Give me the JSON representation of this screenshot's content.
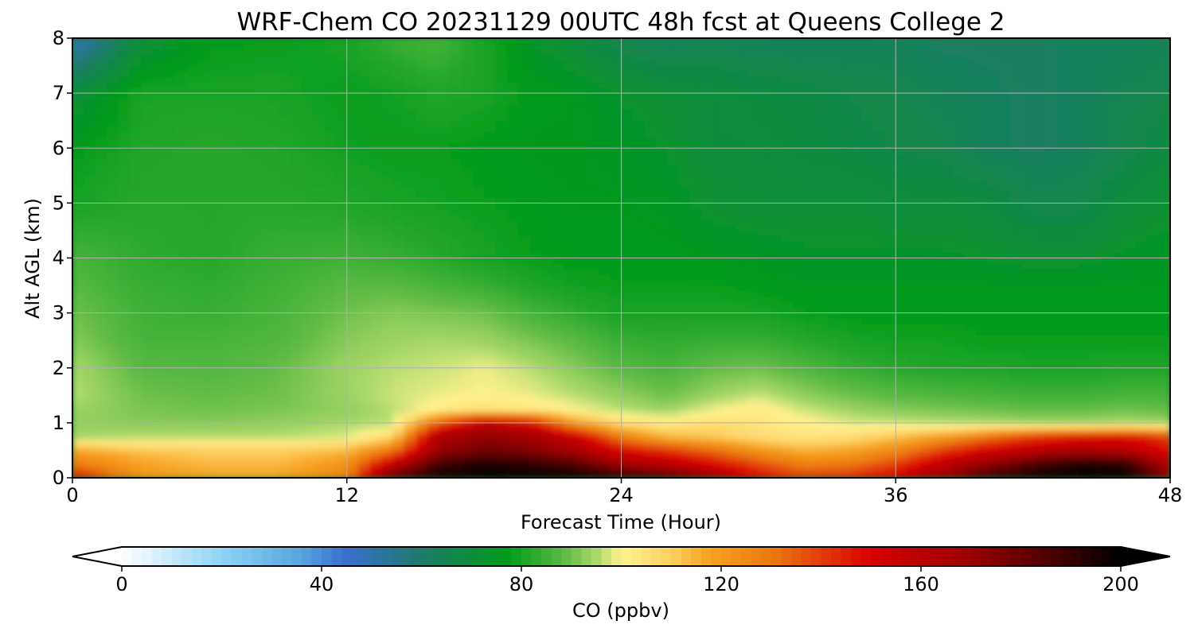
{
  "chart_data": {
    "type": "heatmap",
    "title": "WRF-Chem CO  20231129 00UTC 48h fcst at Queens College 2",
    "xlabel": "Forecast Time (Hour)",
    "ylabel": "Alt AGL (km)",
    "x_ticks": [
      "0",
      "12",
      "24",
      "36",
      "48"
    ],
    "y_ticks": [
      "0",
      "1",
      "2",
      "3",
      "4",
      "5",
      "6",
      "7",
      "8"
    ],
    "xlim": [
      0,
      48
    ],
    "ylim": [
      0,
      8
    ],
    "grid": true,
    "colorbar": {
      "label": "CO  (ppbv)",
      "ticks": [
        "0",
        "40",
        "80",
        "120",
        "160",
        "200"
      ],
      "range": [
        0,
        200
      ],
      "extend": "both",
      "orientation": "horizontal",
      "colors": {
        "0": "#ffffff",
        "20": "#8fd3f5",
        "35": "#5aa8e0",
        "45": "#3a6fcc",
        "60": "#1e7a6a",
        "77": "#009b1a",
        "88": "#58b842",
        "95": "#a9d86a",
        "100": "#fff290",
        "110": "#fdd060",
        "118": "#f6a020",
        "130": "#ec7a10",
        "150": "#d80000",
        "170": "#9a0000",
        "186": "#4a0000",
        "200": "#000000"
      }
    },
    "time_hours": [
      0,
      3,
      6,
      9,
      12,
      14,
      16,
      18,
      20,
      22,
      24,
      26,
      28,
      30,
      32,
      34,
      36,
      38,
      40,
      42,
      44,
      46,
      48
    ],
    "heights_km": [
      0,
      0.25,
      0.5,
      0.75,
      1,
      1.25,
      1.5,
      2,
      2.5,
      3,
      3.5,
      4,
      5,
      6,
      7,
      8
    ],
    "co_ppbv": [
      [
        150,
        122,
        118,
        118,
        128,
        185,
        198,
        200,
        200,
        200,
        195,
        188,
        170,
        150,
        142,
        145,
        152,
        172,
        190,
        198,
        200,
        200,
        175
      ],
      [
        130,
        118,
        114,
        114,
        122,
        158,
        188,
        195,
        192,
        185,
        168,
        160,
        150,
        138,
        128,
        130,
        140,
        158,
        172,
        185,
        195,
        192,
        162
      ],
      [
        118,
        112,
        110,
        110,
        114,
        130,
        170,
        178,
        175,
        165,
        150,
        142,
        132,
        122,
        115,
        118,
        125,
        140,
        152,
        160,
        165,
        162,
        148
      ],
      [
        95,
        96,
        96,
        96,
        98,
        108,
        165,
        172,
        168,
        155,
        128,
        115,
        112,
        106,
        104,
        106,
        112,
        120,
        130,
        140,
        146,
        148,
        138
      ],
      [
        93,
        92,
        92,
        93,
        95,
        96,
        135,
        160,
        150,
        120,
        106,
        102,
        106,
        104,
        101,
        98,
        97,
        96,
        95,
        94,
        94,
        95,
        94
      ],
      [
        94,
        91,
        90,
        91,
        93,
        96,
        102,
        106,
        104,
        100,
        96,
        94,
        99,
        102,
        97,
        94,
        92,
        91,
        90,
        89,
        89,
        90,
        89
      ],
      [
        96,
        90,
        89,
        90,
        94,
        97,
        99,
        100,
        99,
        96,
        93,
        90,
        94,
        97,
        93,
        90,
        88,
        87,
        86,
        85,
        85,
        86,
        86
      ],
      [
        95,
        88,
        87,
        89,
        94,
        96,
        97,
        99,
        96,
        92,
        88,
        86,
        89,
        90,
        87,
        84,
        82,
        81,
        81,
        80,
        80,
        81,
        81
      ],
      [
        92,
        86,
        86,
        87,
        92,
        94,
        95,
        94,
        91,
        88,
        84,
        83,
        84,
        84,
        82,
        80,
        79,
        79,
        78,
        78,
        78,
        78,
        78
      ],
      [
        90,
        85,
        84,
        86,
        90,
        92,
        91,
        90,
        86,
        83,
        80,
        80,
        80,
        80,
        78,
        77,
        77,
        77,
        77,
        77,
        77,
        77,
        77
      ],
      [
        88,
        84,
        83,
        85,
        88,
        88,
        86,
        84,
        81,
        79,
        78,
        78,
        78,
        77,
        76,
        76,
        76,
        76,
        76,
        76,
        76,
        76,
        76
      ],
      [
        86,
        83,
        82,
        84,
        85,
        84,
        82,
        80,
        78,
        77,
        77,
        77,
        76,
        75,
        74,
        74,
        74,
        74,
        73,
        72,
        72,
        74,
        75
      ],
      [
        80,
        82,
        82,
        82,
        81,
        80,
        79,
        78,
        77,
        76,
        76,
        75,
        72,
        71,
        71,
        71,
        70,
        70,
        69,
        66,
        66,
        70,
        72
      ],
      [
        77,
        81,
        82,
        81,
        79,
        78,
        78,
        77,
        76,
        76,
        75,
        73,
        70,
        70,
        69,
        68,
        67,
        66,
        63,
        62,
        63,
        66,
        69
      ],
      [
        70,
        80,
        80,
        80,
        78,
        79,
        81,
        80,
        77,
        76,
        73,
        71,
        70,
        69,
        68,
        67,
        66,
        64,
        63,
        62,
        63,
        65,
        66
      ],
      [
        46,
        70,
        77,
        78,
        80,
        84,
        86,
        80,
        74,
        69,
        65,
        63,
        64,
        63,
        63,
        63,
        63,
        62,
        62,
        62,
        63,
        63,
        64
      ]
    ]
  }
}
